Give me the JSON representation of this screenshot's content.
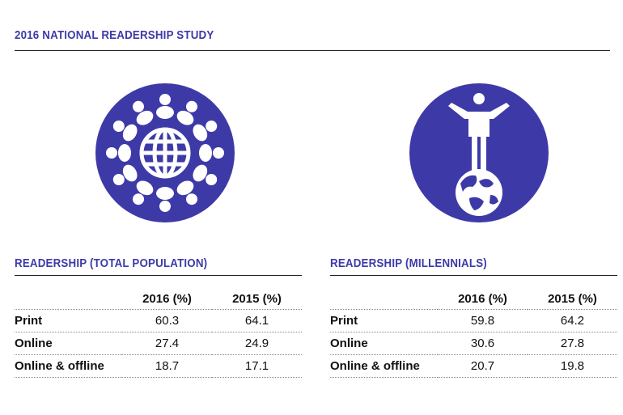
{
  "page": {
    "title": "2016 NATIONAL READERSHIP STUDY"
  },
  "colors": {
    "accent": "#3d3aa8",
    "icon_fill": "#3d3aa8",
    "icon_glyph": "#ffffff"
  },
  "icons": {
    "left": "globe-with-people-icon",
    "right": "person-standing-on-globe-icon"
  },
  "chart_data": [
    {
      "type": "table",
      "title": "READERSHIP (TOTAL POPULATION)",
      "columns": [
        "2016 (%)",
        "2015 (%)"
      ],
      "rows": [
        {
          "label": "Print",
          "values": [
            "60.3",
            "64.1"
          ]
        },
        {
          "label": "Online",
          "values": [
            "27.4",
            "24.9"
          ]
        },
        {
          "label": "Online & offline",
          "values": [
            "18.7",
            "17.1"
          ]
        }
      ]
    },
    {
      "type": "table",
      "title": "READERSHIP (MILLENNIALS)",
      "columns": [
        "2016 (%)",
        "2015 (%)"
      ],
      "rows": [
        {
          "label": "Print",
          "values": [
            "59.8",
            "64.2"
          ]
        },
        {
          "label": "Online",
          "values": [
            "30.6",
            "27.8"
          ]
        },
        {
          "label": "Online & offline",
          "values": [
            "20.7",
            "19.8"
          ]
        }
      ]
    }
  ]
}
